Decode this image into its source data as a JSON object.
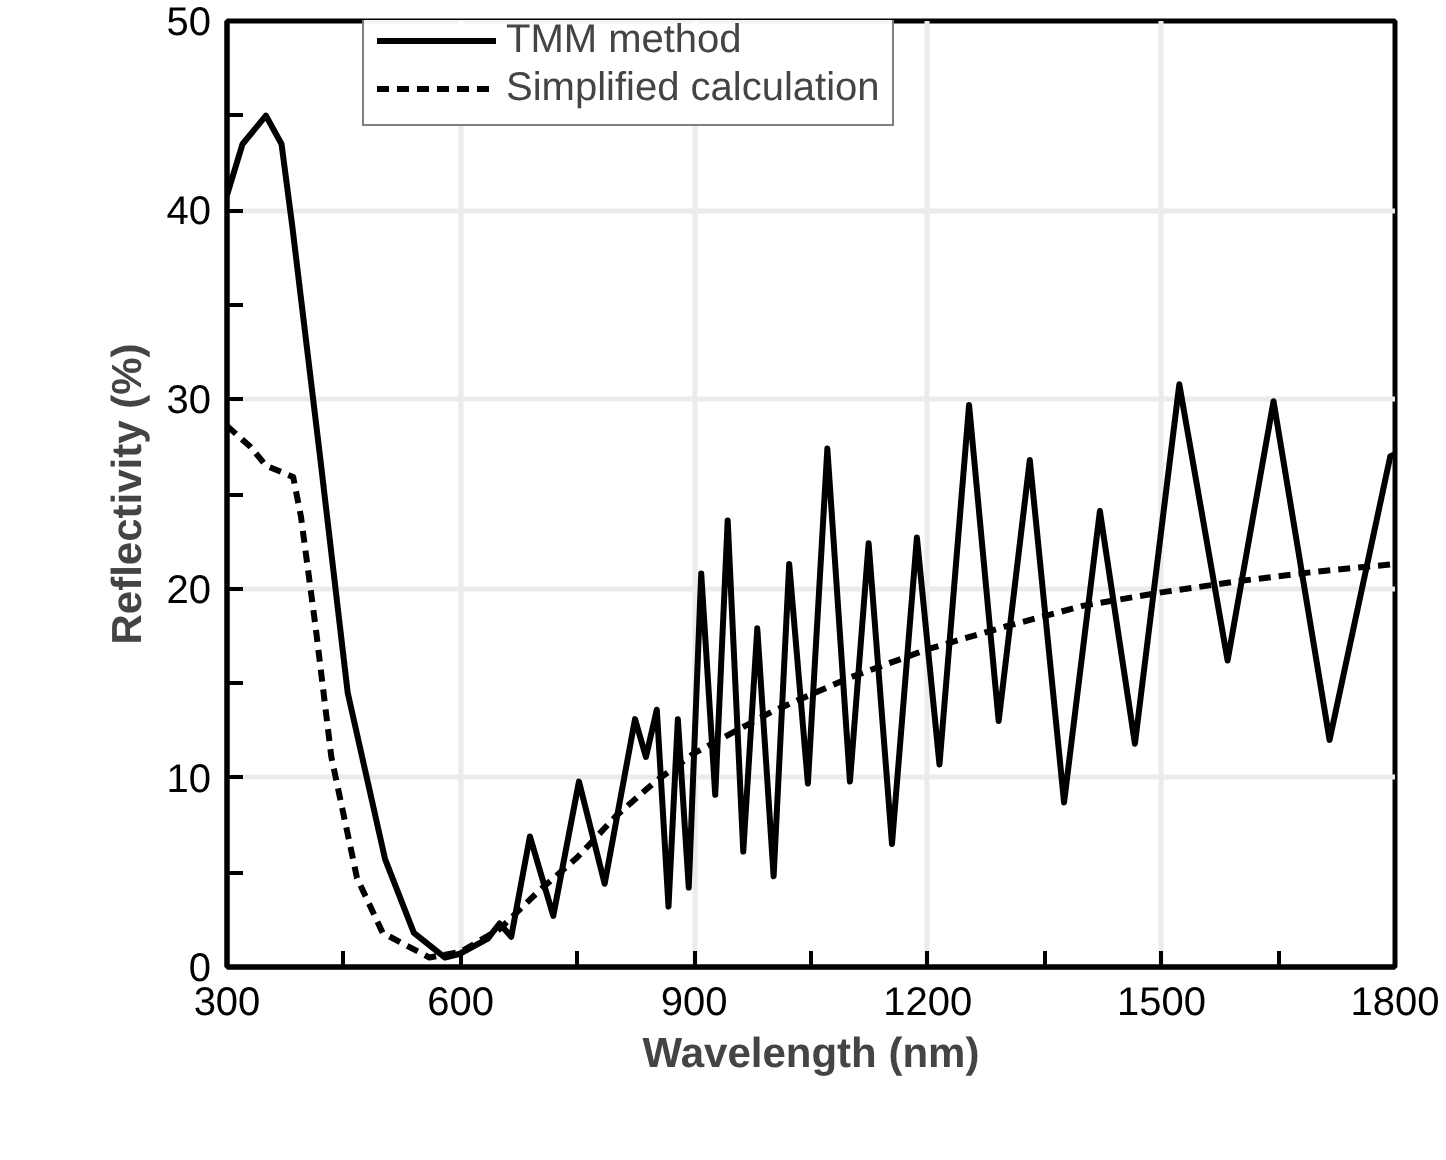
{
  "chart_data": {
    "type": "line",
    "xlabel": "Wavelength (nm)",
    "ylabel": "Reflectivity (%)",
    "xlim": [
      300,
      1800
    ],
    "ylim": [
      0,
      50
    ],
    "xticks": [
      300,
      {
        "value": 450,
        "label": null
      },
      600,
      {
        "value": 750,
        "label": null
      },
      900,
      {
        "value": 1050,
        "label": null
      },
      1200,
      {
        "value": 1350,
        "label": null
      },
      1500,
      {
        "value": 1650,
        "label": null
      },
      1800
    ],
    "yticks": [
      0,
      {
        "value": 5,
        "label": null
      },
      10,
      {
        "value": 15,
        "label": null
      },
      20,
      {
        "value": 25,
        "label": null
      },
      30,
      {
        "value": 35,
        "label": null
      },
      40,
      {
        "value": 45,
        "label": null
      },
      50
    ],
    "grid": true,
    "legend": "top left",
    "series": [
      {
        "name": "TMM method",
        "color": "#000000",
        "line_style": "solid",
        "x": [
          300,
          320,
          350,
          370,
          384,
          420,
          455,
          503,
          540,
          580,
          599,
          635,
          650,
          665,
          689,
          719,
          752,
          785,
          824,
          838,
          852,
          867,
          879,
          893,
          909,
          927,
          943,
          963,
          981,
          1002,
          1022,
          1046,
          1071,
          1100,
          1124,
          1154,
          1186,
          1215,
          1253,
          1291,
          1331,
          1375,
          1421,
          1466,
          1523,
          1585,
          1644,
          1716,
          1794,
          1800
        ],
        "values": [
          40.8,
          43.5,
          45.0,
          43.5,
          39.1,
          26.8,
          14.5,
          5.7,
          1.8,
          0.5,
          0.7,
          1.5,
          2.3,
          1.6,
          6.9,
          2.7,
          9.8,
          4.4,
          13.1,
          11.1,
          13.6,
          3.2,
          13.1,
          4.2,
          20.8,
          9.1,
          23.6,
          6.1,
          17.9,
          4.8,
          21.3,
          9.7,
          27.4,
          9.8,
          22.4,
          6.5,
          22.7,
          10.7,
          29.7,
          13.0,
          26.8,
          8.7,
          24.1,
          11.8,
          30.8,
          16.2,
          29.9,
          12.0,
          27.0,
          27.1
        ]
      },
      {
        "name": "Simplified calculation",
        "color": "#000000",
        "line_style": "dashed",
        "x": [
          300,
          330,
          350,
          385,
          395,
          414,
          434,
          467,
          500,
          560,
          600,
          650,
          700,
          750,
          800,
          850,
          900,
          1000,
          1100,
          1200,
          1300,
          1400,
          1500,
          1600,
          1700,
          1800
        ],
        "values": [
          28.6,
          27.5,
          26.5,
          25.9,
          23.8,
          17.9,
          11.1,
          4.7,
          1.8,
          0.5,
          0.8,
          2.0,
          4.0,
          5.8,
          8.0,
          9.8,
          11.3,
          13.5,
          15.3,
          16.8,
          18.0,
          19.1,
          19.8,
          20.4,
          20.9,
          21.3
        ]
      }
    ]
  }
}
